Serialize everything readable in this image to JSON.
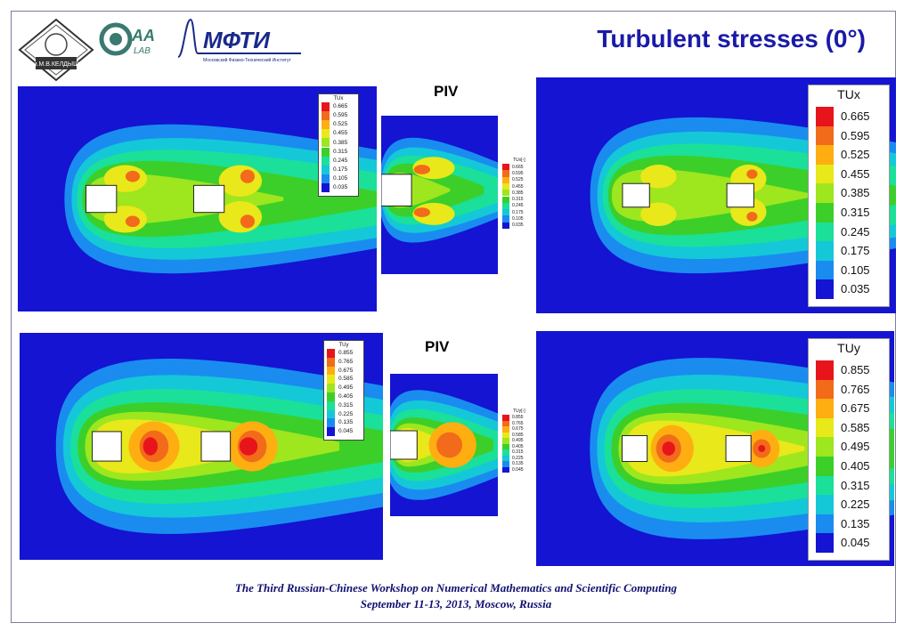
{
  "header": {
    "title": "Turbulent stresses (0°)",
    "logo_keldysh": "ИНСТИТУТ им.М.В.КЕЛДЫША РАН",
    "logo_aa_lab": "AA LAB",
    "logo_mipt": "МФТИ",
    "logo_mipt_sub": "Московский Физико-Технический Институт"
  },
  "labels": {
    "piv_top": "PIV",
    "piv_bottom": "PIV"
  },
  "footer": {
    "line1": "The Third Russian-Chinese Workshop on Numerical Mathematics and Scientific Computing",
    "line2": "September 11-13, 2013, Moscow, Russia"
  },
  "legends": {
    "tux": {
      "title": "TUx",
      "piv_title": "TUx[-]",
      "levels": [
        "0.665",
        "0.595",
        "0.525",
        "0.455",
        "0.385",
        "0.315",
        "0.245",
        "0.175",
        "0.105",
        "0.035"
      ]
    },
    "tuy": {
      "title": "TUy",
      "piv_title": "TUy[-]",
      "levels": [
        "0.855",
        "0.765",
        "0.675",
        "0.585",
        "0.495",
        "0.405",
        "0.315",
        "0.225",
        "0.135",
        "0.045"
      ]
    }
  },
  "colors": {
    "scale": [
      "#e8141c",
      "#f26b1a",
      "#ffae12",
      "#e8e81a",
      "#9ee61e",
      "#3ccf2a",
      "#1ae09a",
      "#14c8d8",
      "#1a8cf0",
      "#1414d2"
    ],
    "frame": "#7a7f9a",
    "title": "#1a1aa8"
  }
}
